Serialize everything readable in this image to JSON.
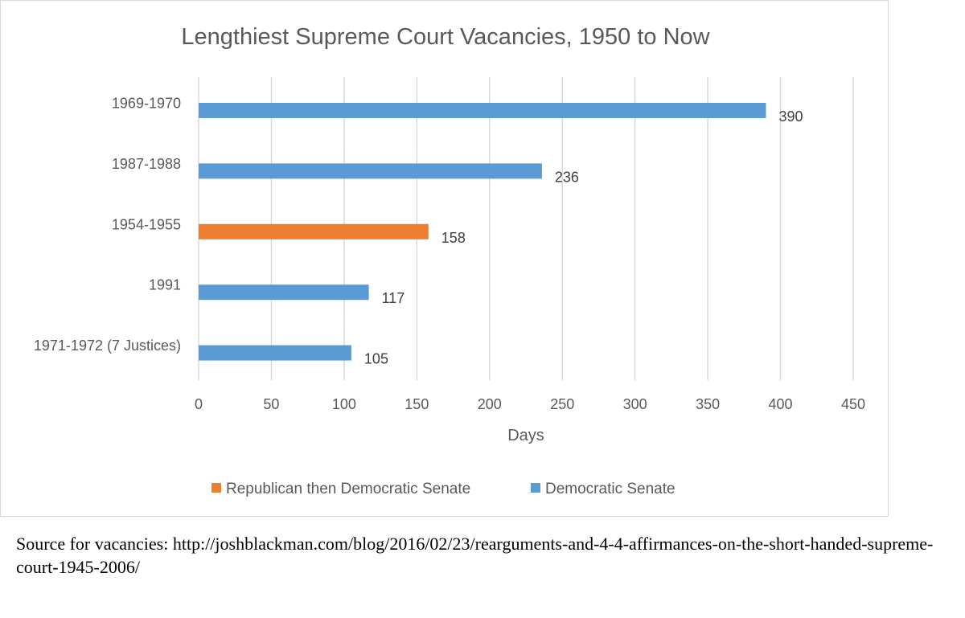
{
  "chart_data": {
    "type": "bar",
    "orientation": "horizontal",
    "title": "Lengthiest Supreme Court Vacancies, 1950 to Now",
    "xlabel": "Days",
    "ylabel": "",
    "xlim": [
      0,
      450
    ],
    "xticks": [
      0,
      50,
      100,
      150,
      200,
      250,
      300,
      350,
      400,
      450
    ],
    "grid": true,
    "legend_position": "bottom",
    "categories": [
      "1969-1970",
      "1987-1988",
      "1954-1955",
      "1991",
      "1971-1972 (7 Justices)"
    ],
    "values": [
      390,
      236,
      158,
      117,
      105
    ],
    "series_index": [
      1,
      1,
      0,
      1,
      1
    ],
    "series": [
      {
        "name": "Republican then Democratic Senate",
        "color": "#ed7d31"
      },
      {
        "name": "Democratic Senate",
        "color": "#5b9bd5"
      }
    ]
  },
  "source_note": "Source for vacancies: http://joshblackman.com/blog/2016/02/23/rearguments-and-4-4-affirmances-on-the-short-handed-supreme-court-1945-2006/"
}
